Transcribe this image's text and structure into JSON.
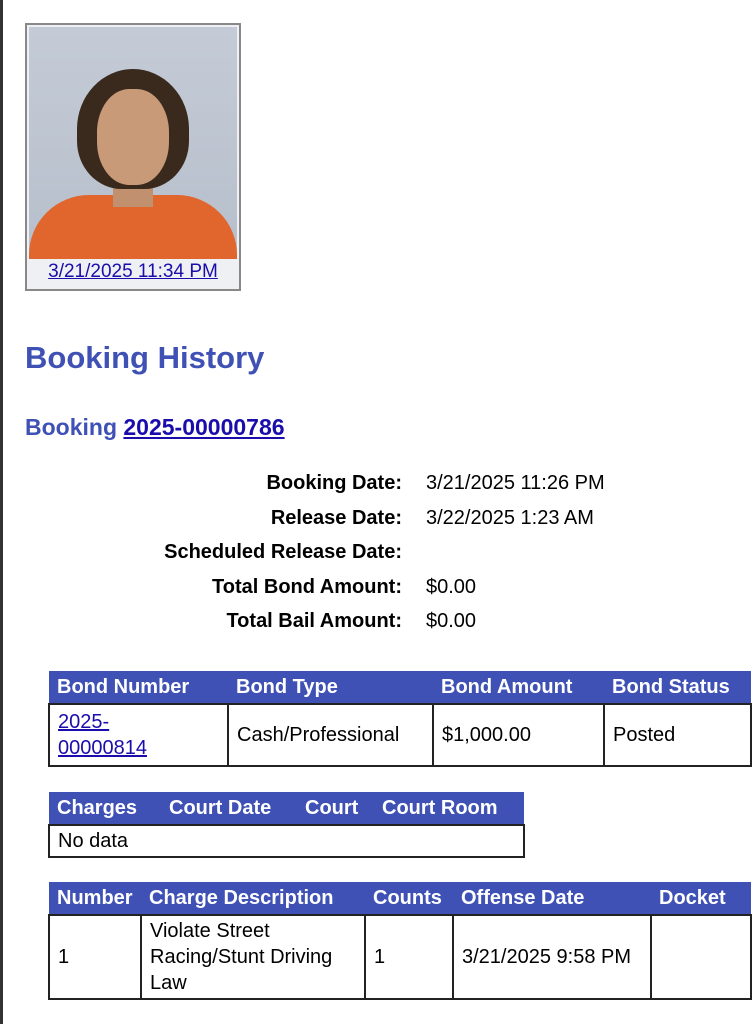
{
  "photo": {
    "caption": "3/21/2025 11:34 PM"
  },
  "title": "Booking History",
  "booking": {
    "label": "Booking",
    "number": "2025-00000786"
  },
  "details": [
    {
      "label": "Booking Date:",
      "value": "3/21/2025 11:26 PM"
    },
    {
      "label": "Release Date:",
      "value": "3/22/2025 1:23 AM"
    },
    {
      "label": "Scheduled Release Date:",
      "value": ""
    },
    {
      "label": "Total Bond Amount:",
      "value": "$0.00"
    },
    {
      "label": "Total Bail Amount:",
      "value": "$0.00"
    }
  ],
  "bonds": {
    "headers": [
      "Bond Number",
      "Bond Type",
      "Bond Amount",
      "Bond Status"
    ],
    "rows": [
      [
        "2025-00000814",
        "Cash/Professional",
        "$1,000.00",
        "Posted"
      ]
    ]
  },
  "court": {
    "headers": [
      "Charges",
      "Court Date",
      "Court",
      "Court Room"
    ],
    "empty": "No data"
  },
  "charges": {
    "headers": [
      "Number",
      "Charge Description",
      "Counts",
      "Offense Date",
      "Docket"
    ],
    "rows": [
      [
        "1",
        "Violate Street Racing/Stunt Driving Law",
        "1",
        "3/21/2025 9:58 PM",
        ""
      ]
    ]
  },
  "colors": {
    "header_bg": "#3f51b5",
    "title": "#3f51b5",
    "link": "#1a0dab"
  }
}
